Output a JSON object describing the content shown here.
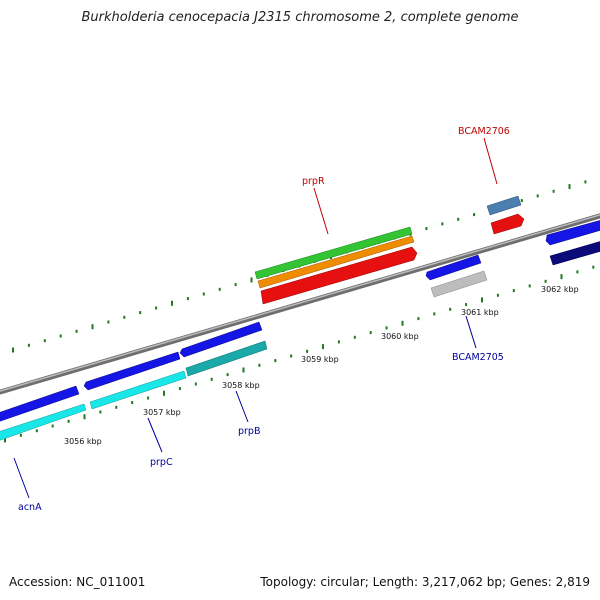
{
  "title": "Burkholderia cenocepacia J2315 chromosome 2, complete genome",
  "footer": {
    "accession": "Accession: NC_011001",
    "topology": "Topology: circular; Length: 3,217,062 bp; Genes: 2,819"
  },
  "tick_labels": [
    "3056 kbp",
    "3057 kbp",
    "3058 kbp",
    "3059 kbp",
    "3060 kbp",
    "3061 kbp",
    "3062 kbp"
  ],
  "gene_labels": {
    "acnA": "acnA",
    "prpC": "prpC",
    "prpB": "prpB",
    "prpR": "prpR",
    "BCAM2705": "BCAM2705",
    "BCAM2706": "BCAM2706"
  },
  "colors": {
    "backbone": "#7a7a7a",
    "tick": "#1f7a1f",
    "forward_label": "#00009a",
    "reverse_label": "#c00000",
    "blue_gene": "#1515e6",
    "cyan_gene": "#19e6e6",
    "teal_gene": "#1aa8a8",
    "navy_gene": "#0a0a78",
    "red_gene": "#e61010",
    "green_gene": "#33c433",
    "orange_gene": "#f08c00",
    "steel_gene": "#4a7fb0",
    "grey_gene": "#bdbdbd"
  }
}
